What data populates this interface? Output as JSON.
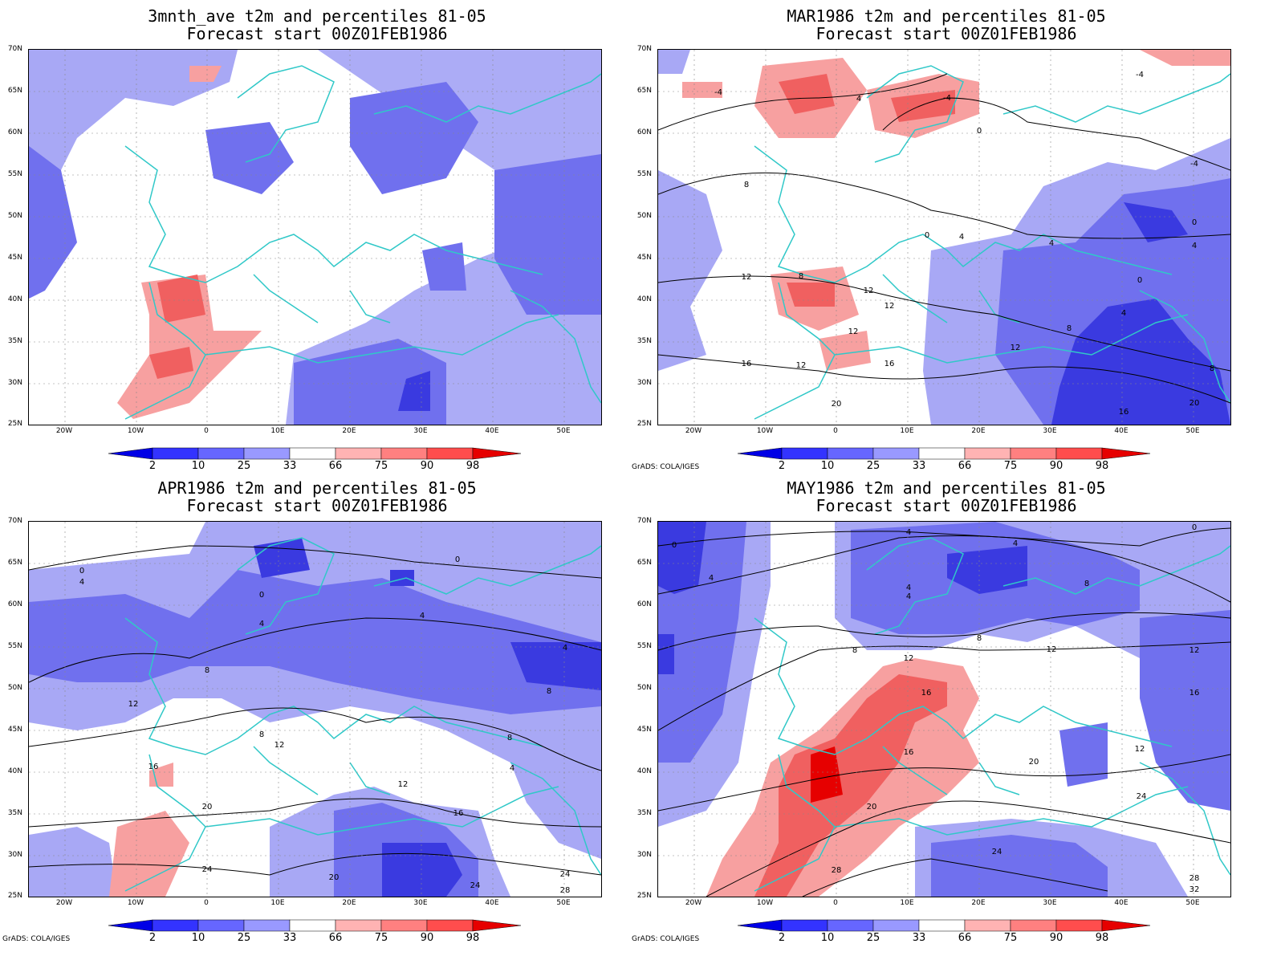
{
  "panels": [
    {
      "title1": "3mnth_ave t2m and percentiles 81-05",
      "title2": "Forecast start 00Z01FEB1986",
      "credit": ""
    },
    {
      "title1": "MAR1986 t2m and percentiles 81-05",
      "title2": "Forecast start 00Z01FEB1986",
      "credit": "GrADS: COLA/IGES"
    },
    {
      "title1": "APR1986 t2m and percentiles 81-05",
      "title2": "Forecast start 00Z01FEB1986",
      "credit": "GrADS: COLA/IGES"
    },
    {
      "title1": "MAY1986 t2m and percentiles 81-05",
      "title2": "Forecast start 00Z01FEB1986",
      "credit": "GrADS: COLA/IGES"
    }
  ],
  "lat_labels": [
    "70N",
    "65N",
    "60N",
    "55N",
    "50N",
    "45N",
    "40N",
    "35N",
    "30N",
    "25N"
  ],
  "lon_labels": [
    "20W",
    "10W",
    "0",
    "10E",
    "20E",
    "30E",
    "40E",
    "50E"
  ],
  "colorbar": {
    "labels": [
      "2",
      "10",
      "25",
      "33",
      "66",
      "75",
      "90",
      "98"
    ],
    "colors": [
      "#0000e6",
      "#3333ff",
      "#6666ff",
      "#9999ff",
      "#ccccff",
      "#ffffff",
      "#ffb3b3",
      "#ff8080",
      "#ff4d4d",
      "#e60000"
    ]
  },
  "colors": {
    "coastline": "#30c8c8",
    "contour": "#000000",
    "shade_light_blue": "#a8a8f5",
    "shade_mid_blue": "#7070ee",
    "shade_dark_blue": "#3a3ae0",
    "shade_light_red": "#f7a0a0",
    "shade_red": "#f06060"
  },
  "contour_labels": {
    "p1": [],
    "p2": [
      "-4",
      "-4",
      "4",
      "0",
      "8",
      "0",
      "4",
      "4",
      "0",
      "12",
      "8",
      "12",
      "12",
      "12",
      "8",
      "16",
      "16",
      "12",
      "4",
      "0",
      "12",
      "8",
      "20",
      "20",
      "16",
      "-4",
      "-4",
      "4"
    ],
    "p3": [
      "0",
      "4",
      "0",
      "0",
      "4",
      "8",
      "4",
      "4",
      "8",
      "12",
      "8",
      "12",
      "12",
      "16",
      "16",
      "20",
      "24",
      "20",
      "24",
      "24",
      "28",
      "8",
      "4"
    ],
    "p4": [
      "0",
      "4",
      "4",
      "4",
      "4",
      "8",
      "8",
      "8",
      "12",
      "12",
      "16",
      "16",
      "20",
      "20",
      "24",
      "24",
      "28",
      "28",
      "32",
      "12",
      "16",
      "12",
      "4",
      "0"
    ]
  }
}
